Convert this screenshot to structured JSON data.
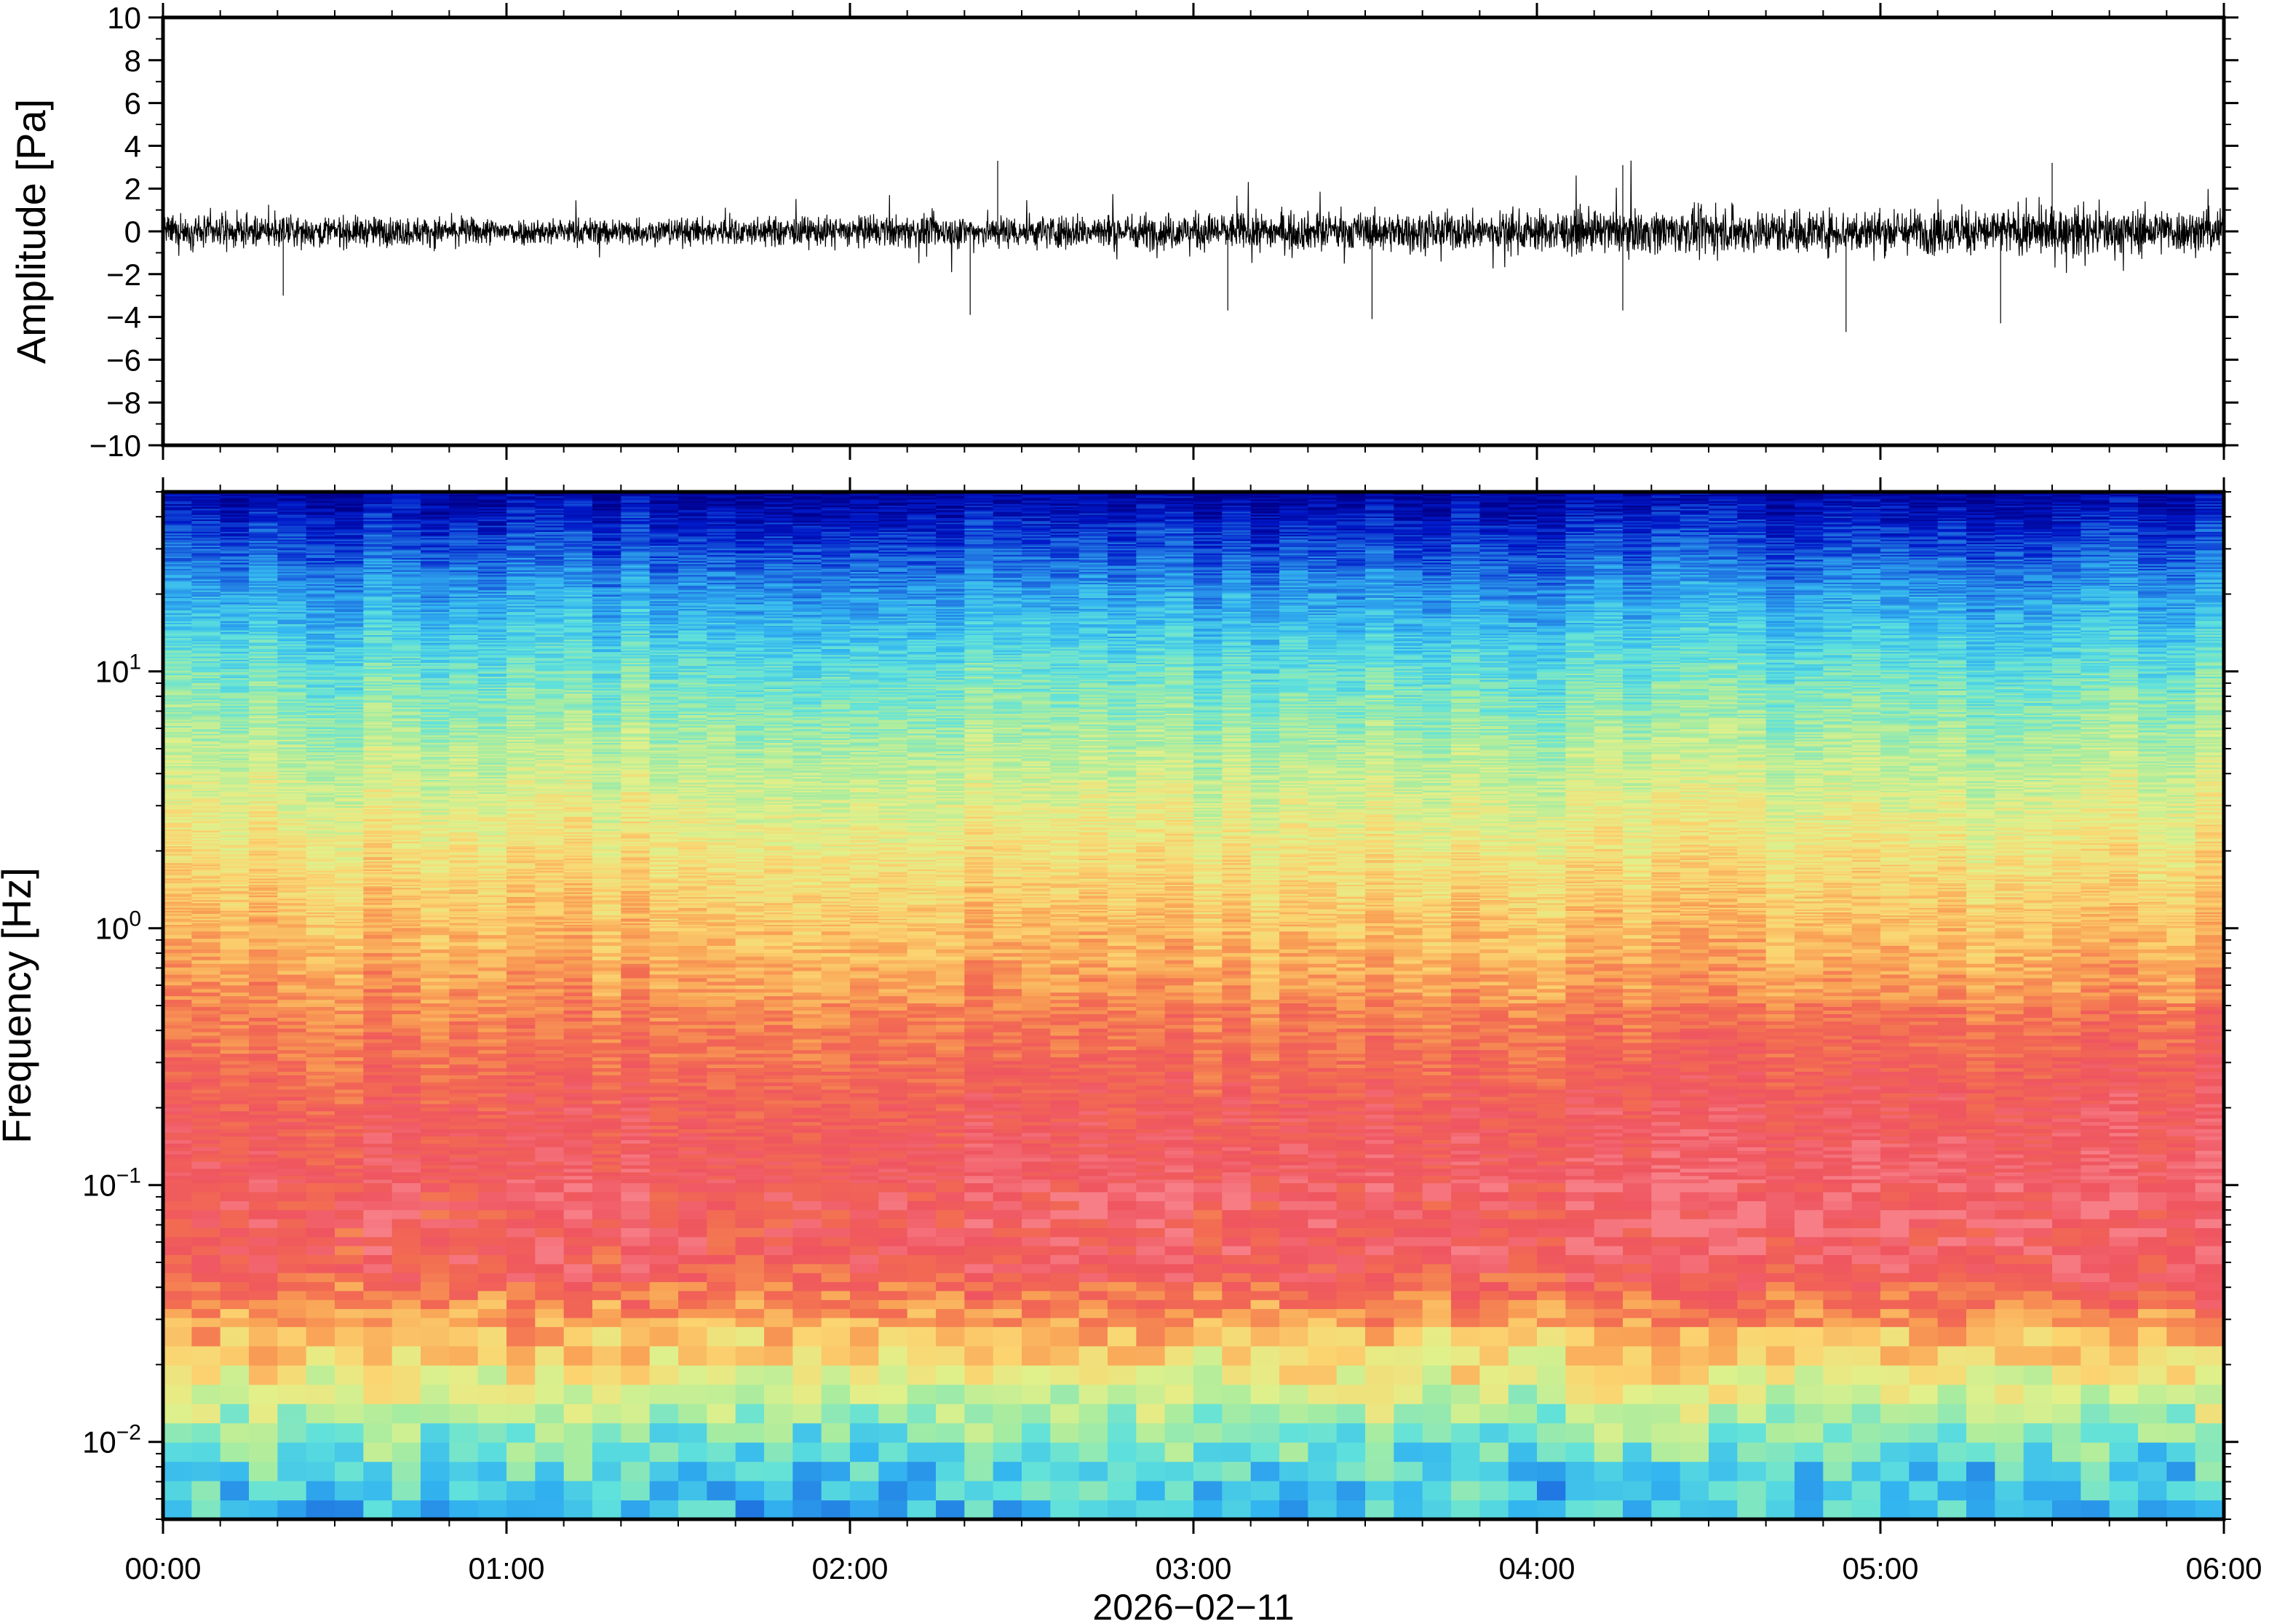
{
  "chart_data": [
    {
      "type": "line",
      "panel": "waveform",
      "ylabel": "Amplitude [Pa]",
      "ylim": [
        -10,
        10
      ],
      "yticks": [
        10,
        8,
        6,
        4,
        2,
        0,
        -2,
        -4,
        -6,
        -8,
        -10
      ],
      "ytick_labels": [
        "10",
        "8",
        "6",
        "4",
        "2",
        "0",
        "−2",
        "−4",
        "−6",
        "−8",
        "−10"
      ],
      "xlim": [
        "00:00",
        "06:00"
      ],
      "envelope": {
        "x_hours": [
          0.0,
          0.5,
          1.0,
          1.5,
          2.0,
          2.5,
          3.0,
          3.5,
          4.0,
          4.5,
          5.0,
          5.5,
          6.0
        ],
        "typical_half_range_pa": [
          0.9,
          0.9,
          0.8,
          0.8,
          0.9,
          1.0,
          1.1,
          1.1,
          1.2,
          1.3,
          1.3,
          1.4,
          1.3
        ]
      },
      "peaks": [
        {
          "hour": 2.43,
          "value": 3.3
        },
        {
          "hour": 2.35,
          "value": -3.9
        },
        {
          "hour": 3.52,
          "value": -4.1
        },
        {
          "hour": 4.25,
          "value": 3.1
        },
        {
          "hour": 4.25,
          "value": -3.7
        },
        {
          "hour": 4.9,
          "value": -4.7
        },
        {
          "hour": 5.5,
          "value": 3.2
        },
        {
          "hour": 5.35,
          "value": -4.3
        },
        {
          "hour": 0.35,
          "value": -3.0
        },
        {
          "hour": 3.1,
          "value": -3.7
        }
      ]
    },
    {
      "type": "heatmap",
      "panel": "spectrogram",
      "ylabel": "Frequency [Hz]",
      "yscale": "log",
      "ylim": [
        0.005,
        50
      ],
      "yticks": [
        0.01,
        0.1,
        1,
        10
      ],
      "ytick_labels": [
        {
          "base": "10",
          "exp": "−2"
        },
        {
          "base": "10",
          "exp": "−1"
        },
        {
          "base": "10",
          "exp": "0"
        },
        {
          "base": "10",
          "exp": "1"
        }
      ],
      "colormap": "jet-like (blue = low power, red = high power)",
      "colormap_stops": [
        "#00008b",
        "#0018c8",
        "#1e6fe0",
        "#33b5f0",
        "#5fe1dc",
        "#a8eca0",
        "#e2f08a",
        "#fbd470",
        "#f9a155",
        "#f26b52",
        "#ef5560",
        "#f77e86"
      ],
      "mean_level_by_frequency": [
        {
          "freq_hz": 0.005,
          "level": 0.3
        },
        {
          "freq_hz": 0.008,
          "level": 0.34
        },
        {
          "freq_hz": 0.012,
          "level": 0.45
        },
        {
          "freq_hz": 0.02,
          "level": 0.62
        },
        {
          "freq_hz": 0.03,
          "level": 0.72
        },
        {
          "freq_hz": 0.05,
          "level": 0.88
        },
        {
          "freq_hz": 0.1,
          "level": 0.9
        },
        {
          "freq_hz": 0.2,
          "level": 0.86
        },
        {
          "freq_hz": 0.5,
          "level": 0.76
        },
        {
          "freq_hz": 1.0,
          "level": 0.68
        },
        {
          "freq_hz": 2.0,
          "level": 0.6
        },
        {
          "freq_hz": 5.0,
          "level": 0.48
        },
        {
          "freq_hz": 10.0,
          "level": 0.38
        },
        {
          "freq_hz": 20.0,
          "level": 0.25
        },
        {
          "freq_hz": 35.0,
          "level": 0.12
        },
        {
          "freq_hz": 50.0,
          "level": 0.03
        }
      ]
    }
  ],
  "x_axis": {
    "ticks": [
      "00:00",
      "01:00",
      "02:00",
      "03:00",
      "04:00",
      "05:00",
      "06:00"
    ],
    "date": "2026−02−11"
  }
}
